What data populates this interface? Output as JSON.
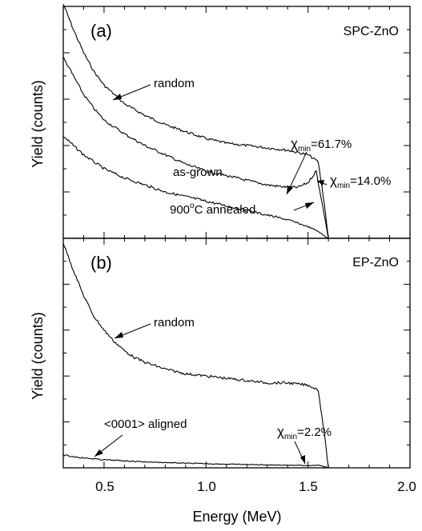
{
  "chart_data": [
    {
      "type": "line",
      "panel_label": "(a)",
      "sample_label": "SPC-ZnO",
      "ylabel": "Yield (counts)",
      "xlim": [
        0.3,
        2.0
      ],
      "ylim": [
        0,
        100
      ],
      "series": [
        {
          "name": "random",
          "x": [
            0.3,
            0.35,
            0.4,
            0.45,
            0.5,
            0.55,
            0.6,
            0.7,
            0.8,
            0.9,
            1.0,
            1.1,
            1.2,
            1.3,
            1.4,
            1.5,
            1.55,
            1.58,
            1.6
          ],
          "values": [
            101,
            90,
            80,
            72,
            66,
            62,
            58,
            53,
            49,
            46,
            43,
            41,
            40,
            39,
            38,
            36,
            33,
            15,
            0
          ]
        },
        {
          "name": "as-grown",
          "x": [
            0.3,
            0.35,
            0.4,
            0.45,
            0.5,
            0.55,
            0.6,
            0.7,
            0.8,
            0.9,
            1.0,
            1.1,
            1.2,
            1.3,
            1.4,
            1.45,
            1.5,
            1.54,
            1.58,
            1.6
          ],
          "values": [
            78,
            70,
            62,
            56,
            51,
            48,
            45,
            40,
            36,
            32,
            29,
            27,
            25,
            23,
            22,
            22,
            24,
            29,
            10,
            0
          ]
        },
        {
          "name": "900°C annealed",
          "x": [
            0.3,
            0.35,
            0.4,
            0.45,
            0.5,
            0.6,
            0.7,
            0.8,
            0.9,
            1.0,
            1.1,
            1.2,
            1.3,
            1.4,
            1.5,
            1.55,
            1.58,
            1.6
          ],
          "values": [
            44,
            40,
            36,
            33,
            30,
            26,
            23,
            20,
            18,
            16,
            14,
            12,
            10,
            8,
            5,
            3,
            1,
            0
          ]
        }
      ],
      "annotations": [
        {
          "label": "random"
        },
        {
          "label": "as-grown"
        },
        {
          "label": "900",
          "superscript": "o",
          "suffix": "C annealed"
        },
        {
          "symbol": "χ",
          "subscript": "min",
          "value": "=61.7%"
        },
        {
          "symbol": "χ",
          "subscript": "min",
          "value": "=14.0%"
        }
      ]
    },
    {
      "type": "line",
      "panel_label": "(b)",
      "sample_label": "EP-ZnO",
      "xlabel": "Energy (MeV)",
      "ylabel": "Yield (counts)",
      "xlim": [
        0.3,
        2.0
      ],
      "ylim": [
        0,
        100
      ],
      "x_ticks": [
        "0.5",
        "1.0",
        "1.5",
        "2.0"
      ],
      "series": [
        {
          "name": "random",
          "x": [
            0.3,
            0.35,
            0.4,
            0.45,
            0.5,
            0.55,
            0.6,
            0.65,
            0.7,
            0.8,
            0.9,
            1.0,
            1.1,
            1.2,
            1.3,
            1.4,
            1.5,
            1.55,
            1.58,
            1.6
          ],
          "values": [
            98,
            86,
            75,
            66,
            60,
            55,
            51,
            48,
            46,
            43,
            41,
            40,
            39,
            38,
            37,
            37,
            36,
            34,
            15,
            0
          ]
        },
        {
          "name": "<0001> aligned",
          "x": [
            0.3,
            0.4,
            0.5,
            0.7,
            0.9,
            1.1,
            1.3,
            1.5,
            1.55,
            1.58,
            1.6
          ],
          "values": [
            5.5,
            4.3,
            3.5,
            2.6,
            2.0,
            1.6,
            1.3,
            1.0,
            1.2,
            0.5,
            0
          ]
        }
      ],
      "annotations": [
        {
          "label": "random"
        },
        {
          "label": "<0001> aligned"
        },
        {
          "symbol": "χ",
          "subscript": "min",
          "value": "=2.2%"
        }
      ]
    }
  ]
}
